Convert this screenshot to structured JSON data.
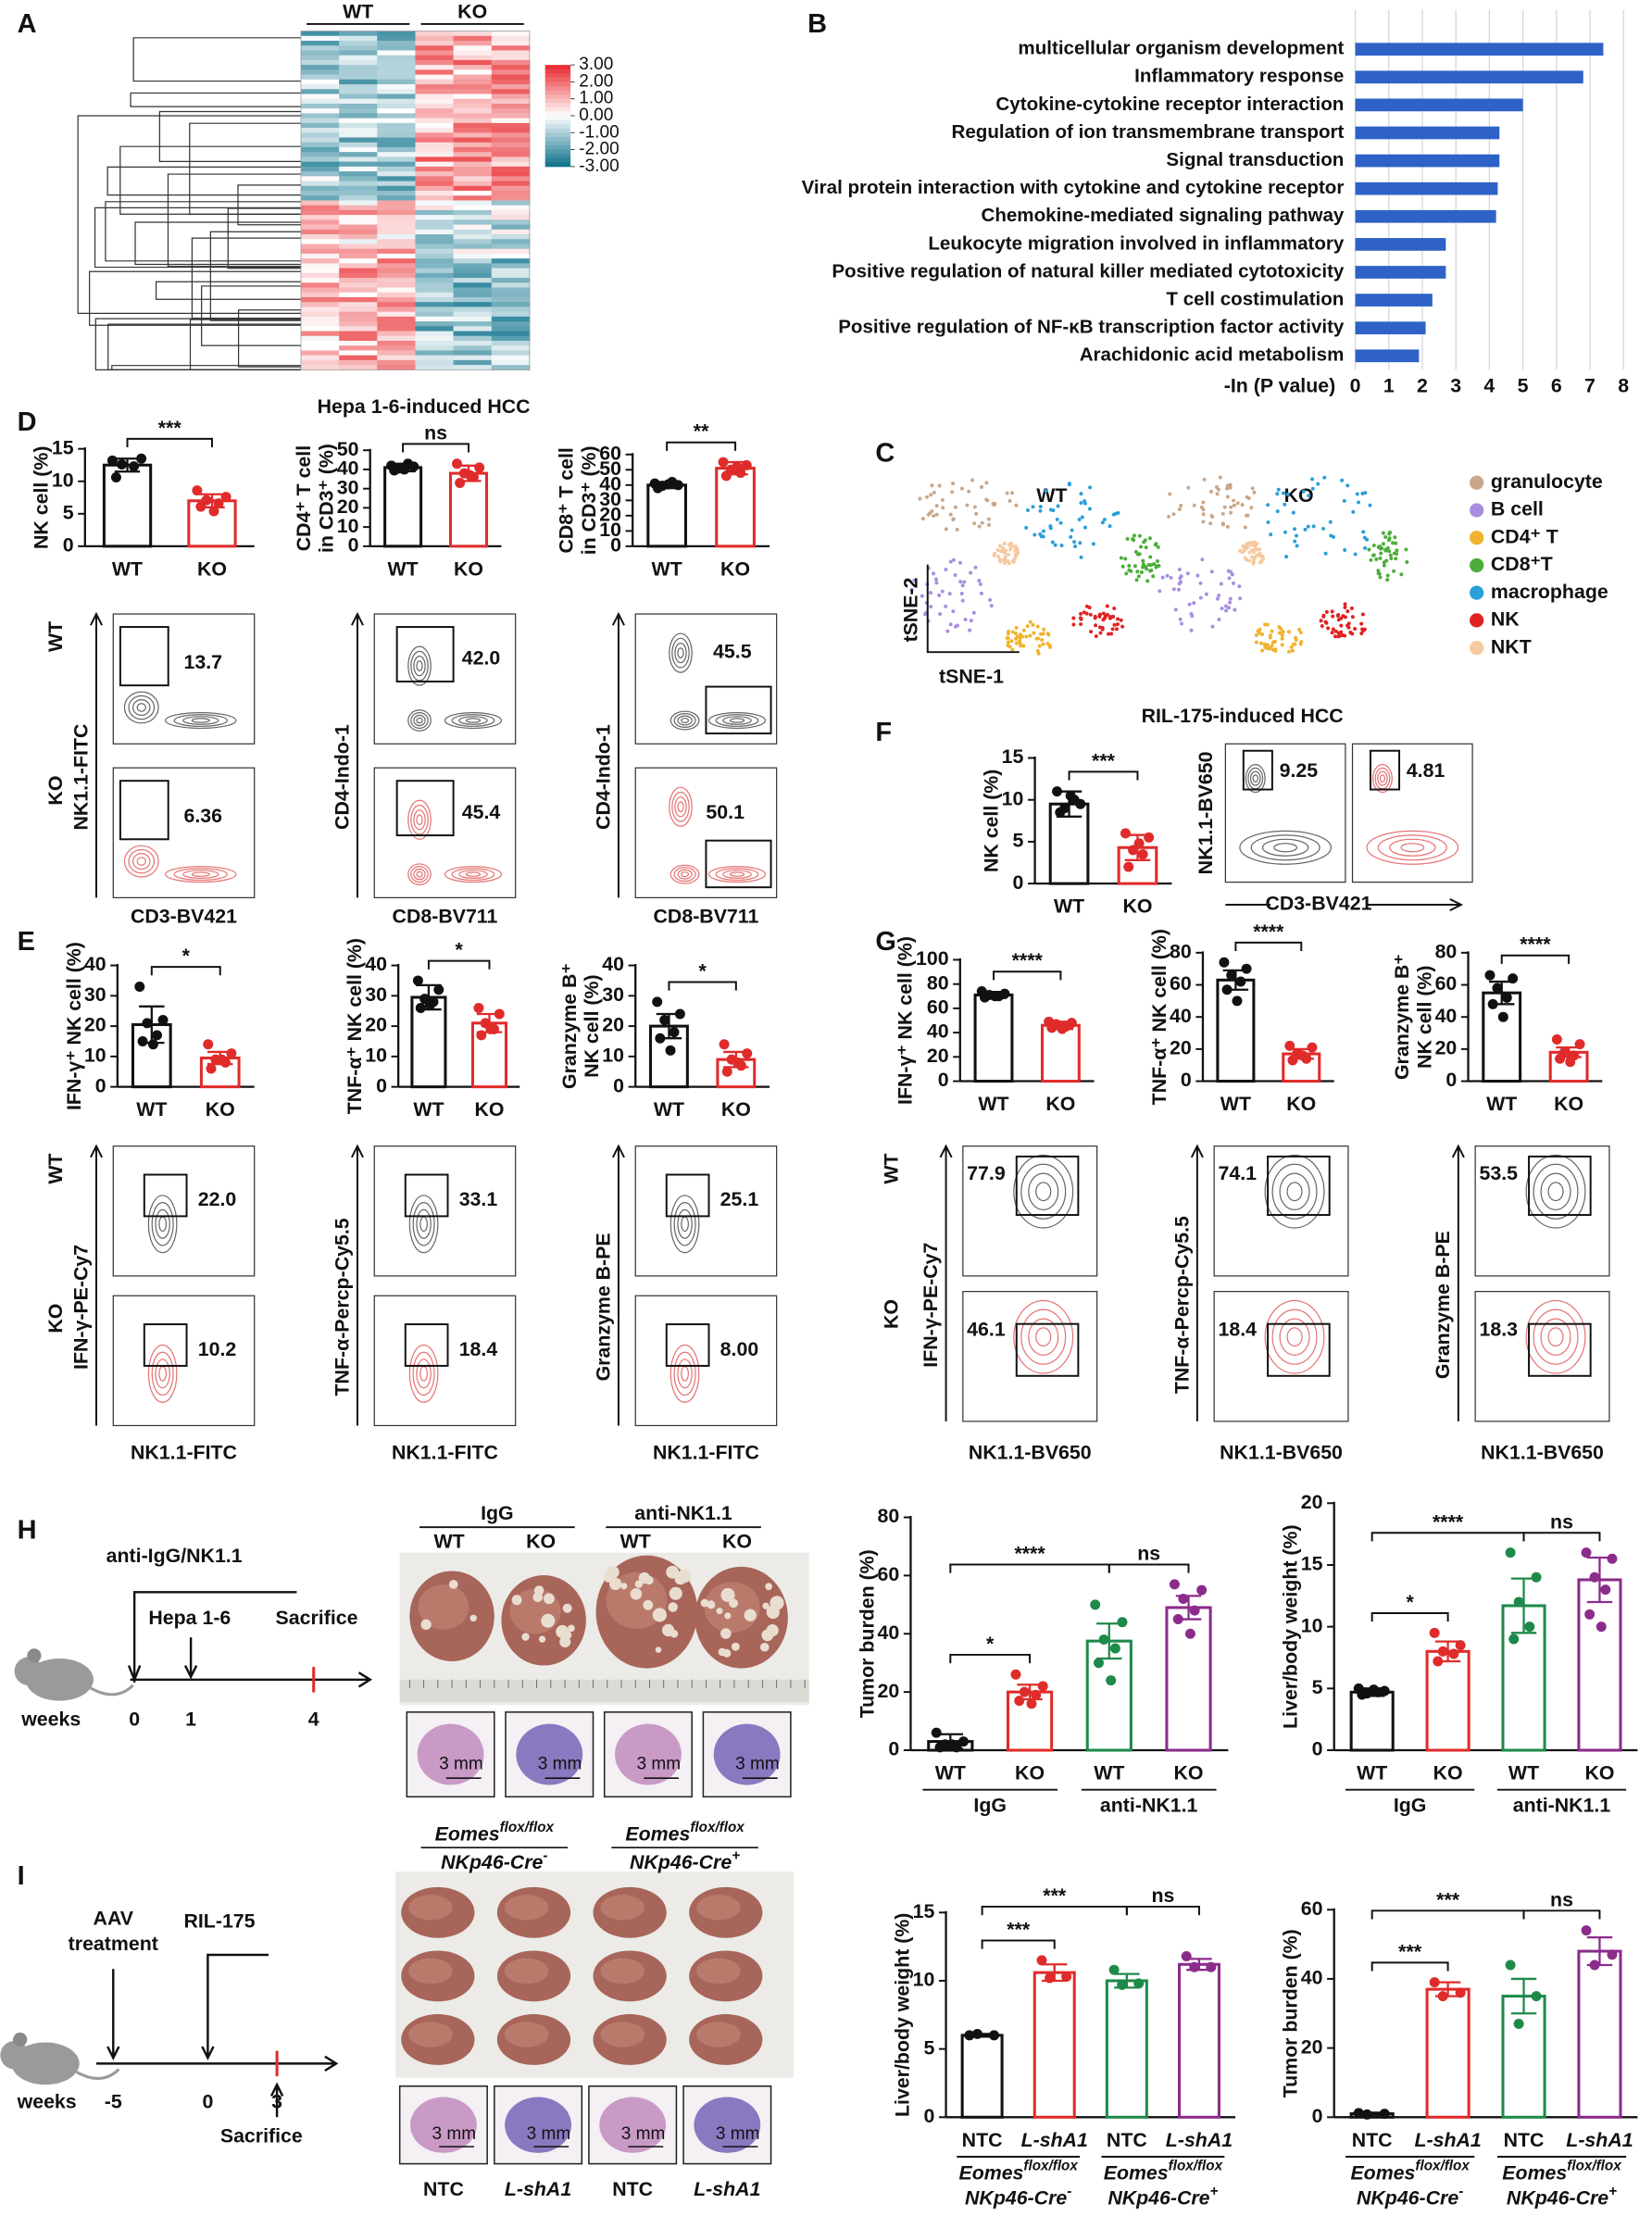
{
  "panel_letters": [
    "A",
    "B",
    "C",
    "D",
    "E",
    "F",
    "G",
    "H",
    "I"
  ],
  "heatmap": {
    "groups": [
      "WT",
      "KO"
    ],
    "colorbar_ticks": [
      {
        "value": 3,
        "label": "3.00"
      },
      {
        "value": 2,
        "label": "2.00"
      },
      {
        "value": 1,
        "label": "1.00"
      },
      {
        "value": 0,
        "label": "0.00"
      },
      {
        "value": -1,
        "label": "-1.00"
      },
      {
        "value": -2,
        "label": "-2.00"
      },
      {
        "value": -3,
        "label": "-3.00"
      }
    ]
  },
  "tsne": {
    "groups": [
      "WT",
      "KO"
    ],
    "x_axis": "tSNE-1",
    "y_axis": "tSNE-2",
    "legend": [
      {
        "name": "granulocyte",
        "color": "#c9a78a"
      },
      {
        "name": "B cell",
        "color": "#a98ee0"
      },
      {
        "name": "CD4⁺ T",
        "color": "#f0b22e"
      },
      {
        "name": "CD8⁺T",
        "color": "#4cae3a"
      },
      {
        "name": "macrophage",
        "color": "#2a9fd8"
      },
      {
        "name": "NK",
        "color": "#e02222"
      },
      {
        "name": "NKT",
        "color": "#f6c9a0"
      }
    ]
  },
  "titles": {
    "D": "Hepa 1-6-induced HCC",
    "F": "RIL-175-induced HCC"
  },
  "flow": {
    "D": {
      "rows": [
        "WT",
        "KO"
      ],
      "y_labels": [
        "NK1.1-FITC",
        "CD4-Indo-1",
        "CD4-Indo-1"
      ],
      "x_labels": [
        "CD3-BV421",
        "CD8-BV711",
        "CD8-BV711"
      ],
      "gates": [
        [
          "13.7",
          "6.36"
        ],
        [
          "42.0",
          "45.4"
        ],
        [
          "45.5",
          "50.1"
        ]
      ]
    },
    "E": {
      "rows": [
        "WT",
        "KO"
      ],
      "y_labels": [
        "IFN-γ-PE-Cy7",
        "TNF-α-Percp-Cy5.5",
        "Granzyme B-PE"
      ],
      "x_labels": [
        "NK1.1-FITC",
        "NK1.1-FITC",
        "NK1.1-FITC"
      ],
      "gates": [
        [
          "22.0",
          "10.2"
        ],
        [
          "33.1",
          "18.4"
        ],
        [
          "25.1",
          "8.00"
        ]
      ]
    },
    "F": {
      "y_labels": [
        "NK1.1-BV650"
      ],
      "x_labels": [
        "CD3-BV421"
      ],
      "gates": [
        [
          "9.25",
          "4.81"
        ]
      ]
    },
    "G": {
      "rows": [
        "WT",
        "KO"
      ],
      "y_labels": [
        "IFN-γ-PE-Cy7",
        "TNF-α-Percp-Cy5.5",
        "Granzyme B-PE"
      ],
      "x_labels": [
        "NK1.1-BV650",
        "NK1.1-BV650",
        "NK1.1-BV650"
      ],
      "gates": [
        [
          "77.9",
          "46.1"
        ],
        [
          "74.1",
          "18.4"
        ],
        [
          "53.5",
          "18.3"
        ]
      ]
    }
  },
  "schematic_H": {
    "treatment": "anti-IgG/NK1.1",
    "injection": "Hepa 1-6",
    "end": "Sacrifice",
    "unit": "weeks",
    "timepoints": [
      "0",
      "1",
      "4"
    ]
  },
  "schematic_I": {
    "treatment": [
      "AAV",
      "treatment"
    ],
    "injection": "RIL-175",
    "end": "Sacrifice",
    "unit": "weeks",
    "timepoints": [
      "-5",
      "0",
      "3"
    ]
  },
  "photos_H": {
    "groups": [
      "IgG",
      "anti-NK1.1"
    ],
    "genotypes": [
      "WT",
      "KO",
      "WT",
      "KO"
    ],
    "scale": [
      "3 mm",
      "3 mm",
      "3 mm",
      "3 mm"
    ]
  },
  "photos_I": {
    "groups": [
      {
        "line1": "Eomes",
        "sup1": "flox/flox",
        "line2": "NKp46-Cre",
        "sup2": "-"
      },
      {
        "line1": "Eomes",
        "sup1": "flox/flox",
        "line2": "NKp46-Cre",
        "sup2": "+"
      }
    ],
    "samples": [
      "NTC",
      "L-shA1",
      "NTC",
      "L-shA1"
    ],
    "scale": [
      "3 mm",
      "3 mm",
      "3 mm",
      "3 mm"
    ]
  },
  "chart_data": [
    {
      "type": "hbar",
      "categories": [
        "multicellular organism development",
        "Inflammatory response",
        "Cytokine-cytokine receptor interaction",
        "Regulation of ion transmembrane transport",
        "Signal transduction",
        "Viral protein interaction with cytokine and cytokine receptor",
        "Chemokine-mediated signaling pathway",
        "Leukocyte migration involved in inflammatory",
        "Positive regulation of natural killer mediated cytotoxicity",
        "T cell costimulation",
        "Positive regulation of NF-κB transcription factor activity",
        "Arachidonic acid metabolism"
      ],
      "values": [
        7.4,
        6.8,
        5.0,
        4.3,
        4.3,
        4.25,
        4.2,
        2.7,
        2.7,
        2.3,
        2.1,
        1.9
      ],
      "color": "#2e62c6",
      "xlabel": "-In (P value)",
      "xlim": [
        0,
        8
      ],
      "xticks": [
        0,
        1,
        2,
        3,
        4,
        5,
        6,
        7,
        8
      ],
      "grid": true
    },
    {
      "type": "dotbar",
      "ylabel": [
        "NK cell (%)"
      ],
      "categories": [
        "WT",
        "KO"
      ],
      "values": [
        12.5,
        7
      ],
      "errors": [
        1,
        1
      ],
      "points": [
        [
          13.2,
          13.5,
          12.6,
          12.3,
          10.6
        ],
        [
          8.6,
          7.6,
          7.1,
          6.6,
          6.1,
          5.4
        ]
      ],
      "colors": [
        "#111111",
        "#e02b2b"
      ],
      "ylim": [
        0,
        15
      ],
      "yticks": [
        0,
        5,
        10,
        15
      ],
      "significance": [
        "***"
      ]
    },
    {
      "type": "dotbar",
      "ylabel": [
        "CD4⁺ T cell",
        "in CD3⁺ (%)"
      ],
      "categories": [
        "WT",
        "KO"
      ],
      "values": [
        41,
        38
      ],
      "errors": [
        2,
        4
      ],
      "points": [
        [
          42,
          41.5,
          40.5,
          43,
          39.5,
          40
        ],
        [
          43,
          41,
          38,
          36,
          33,
          37
        ]
      ],
      "colors": [
        "#111111",
        "#e02b2b"
      ],
      "ylim": [
        0,
        50
      ],
      "yticks": [
        0,
        10,
        20,
        30,
        40,
        50
      ],
      "significance": [
        "ns"
      ]
    },
    {
      "type": "dotbar",
      "ylabel": [
        "CD8⁺ T cell",
        "in CD3⁺ (%)"
      ],
      "categories": [
        "WT",
        "KO"
      ],
      "values": [
        40,
        51
      ],
      "errors": [
        2,
        4
      ],
      "points": [
        [
          41,
          40,
          39.5,
          42,
          38,
          40.5
        ],
        [
          55,
          53,
          50,
          48,
          46,
          52
        ]
      ],
      "colors": [
        "#111111",
        "#e02b2b"
      ],
      "ylim": [
        0,
        60
      ],
      "yticks": [
        0,
        10,
        20,
        30,
        40,
        50,
        60
      ],
      "significance": [
        "**"
      ]
    },
    {
      "type": "dotbar",
      "ylabel": [
        "NK cell (%)"
      ],
      "categories": [
        "WT",
        "KO"
      ],
      "values": [
        9.5,
        4.3
      ],
      "errors": [
        1.5,
        1.5
      ],
      "points": [
        [
          11,
          9.5,
          9,
          10,
          8.5,
          10.5
        ],
        [
          6,
          5.5,
          4,
          3.5,
          2,
          4.8
        ]
      ],
      "colors": [
        "#111111",
        "#e02b2b"
      ],
      "ylim": [
        0,
        15
      ],
      "yticks": [
        0,
        5,
        10,
        15
      ],
      "significance": [
        "***"
      ]
    },
    {
      "type": "dotbar",
      "ylabel": [
        "IFN-γ⁺ NK cell (%)"
      ],
      "categories": [
        "WT",
        "KO"
      ],
      "values": [
        20.5,
        9.5
      ],
      "errors": [
        6,
        2
      ],
      "points": [
        [
          33,
          22,
          21,
          17,
          15,
          14
        ],
        [
          14,
          11,
          9,
          8,
          6,
          9
        ]
      ],
      "colors": [
        "#111111",
        "#e02b2b"
      ],
      "ylim": [
        0,
        40
      ],
      "yticks": [
        0,
        10,
        20,
        30,
        40
      ],
      "significance": [
        "*"
      ]
    },
    {
      "type": "dotbar",
      "ylabel": [
        "TNF-α⁺ NK cell (%)"
      ],
      "categories": [
        "WT",
        "KO"
      ],
      "values": [
        29.5,
        21
      ],
      "errors": [
        4,
        3
      ],
      "points": [
        [
          35,
          32,
          29,
          28,
          26,
          27
        ],
        [
          26,
          24,
          21,
          19,
          17,
          19
        ]
      ],
      "colors": [
        "#111111",
        "#e02b2b"
      ],
      "ylim": [
        0,
        40
      ],
      "yticks": [
        0,
        10,
        20,
        30,
        40
      ],
      "significance": [
        "*"
      ]
    },
    {
      "type": "dotbar",
      "ylabel": [
        "Granzyme B⁺",
        "NK cell (%)"
      ],
      "categories": [
        "WT",
        "KO"
      ],
      "values": [
        20,
        9
      ],
      "errors": [
        4,
        2.5
      ],
      "points": [
        [
          28,
          24,
          22,
          18,
          16,
          12
        ],
        [
          14,
          11,
          9,
          7,
          5,
          8
        ]
      ],
      "colors": [
        "#111111",
        "#e02b2b"
      ],
      "ylim": [
        0,
        40
      ],
      "yticks": [
        0,
        10,
        20,
        30,
        40
      ],
      "significance": [
        "*"
      ]
    },
    {
      "type": "dotbar",
      "ylabel": [
        "IFN-γ⁺ NK cell (%)"
      ],
      "categories": [
        "WT",
        "KO"
      ],
      "values": [
        71,
        46
      ],
      "errors": [
        2.5,
        3
      ],
      "points": [
        [
          74,
          72,
          71,
          70,
          69,
          70
        ],
        [
          49,
          48,
          47,
          45,
          44,
          43
        ]
      ],
      "colors": [
        "#111111",
        "#e02b2b"
      ],
      "ylim": [
        0,
        100
      ],
      "yticks": [
        0,
        20,
        40,
        60,
        80,
        100
      ],
      "significance": [
        "****"
      ]
    },
    {
      "type": "dotbar",
      "ylabel": [
        "TNF-α⁺ NK cell (%)"
      ],
      "categories": [
        "WT",
        "KO"
      ],
      "values": [
        63,
        17
      ],
      "errors": [
        6,
        3
      ],
      "points": [
        [
          74,
          70,
          66,
          62,
          57,
          50
        ],
        [
          22,
          21,
          17,
          14,
          13,
          16
        ]
      ],
      "colors": [
        "#111111",
        "#e02b2b"
      ],
      "ylim": [
        0,
        80
      ],
      "yticks": [
        0,
        20,
        40,
        60,
        80
      ],
      "significance": [
        "****"
      ]
    },
    {
      "type": "dotbar",
      "ylabel": [
        "Granzyme B⁺",
        "NK cell (%)"
      ],
      "categories": [
        "WT",
        "KO"
      ],
      "values": [
        55,
        18
      ],
      "errors": [
        7,
        3
      ],
      "points": [
        [
          66,
          64,
          58,
          52,
          48,
          40
        ],
        [
          26,
          23,
          18,
          16,
          14,
          12
        ]
      ],
      "colors": [
        "#111111",
        "#e02b2b"
      ],
      "ylim": [
        0,
        80
      ],
      "yticks": [
        0,
        20,
        40,
        60,
        80
      ],
      "significance": [
        "****"
      ]
    },
    {
      "type": "dotbar",
      "ylabel": [
        "Tumor burden (%)"
      ],
      "categories": [
        "WT",
        "KO",
        "WT",
        "KO"
      ],
      "groups": [
        "IgG",
        "anti-NK1.1"
      ],
      "values": [
        3,
        20,
        37.5,
        49
      ],
      "errors": [
        2.5,
        2.5,
        6,
        4
      ],
      "points": [
        [
          6,
          3,
          2,
          1,
          1,
          2
        ],
        [
          26,
          22,
          20,
          19,
          17,
          16
        ],
        [
          50,
          44,
          38,
          35,
          30,
          24
        ],
        [
          57,
          55,
          52,
          48,
          45,
          40
        ]
      ],
      "colors": [
        "#111111",
        "#e02b2b",
        "#1d8a4a",
        "#8b2c8b"
      ],
      "ylim": [
        0,
        80
      ],
      "yticks": [
        0,
        20,
        40,
        60,
        80
      ],
      "significance": [
        "*",
        "****",
        "ns"
      ]
    },
    {
      "type": "dotbar",
      "ylabel": [
        "Liver/body weight (%)"
      ],
      "categories": [
        "WT",
        "KO",
        "WT",
        "KO"
      ],
      "groups": [
        "IgG",
        "anti-NK1.1"
      ],
      "values": [
        4.7,
        8,
        11.7,
        13.8
      ],
      "errors": [
        0.3,
        0.8,
        2.2,
        1.8
      ],
      "points": [
        [
          5,
          4.8,
          4.6,
          4.7,
          4.5,
          4.9
        ],
        [
          9.5,
          8.5,
          8,
          7.8,
          7.2
        ],
        [
          16,
          14,
          12,
          10,
          9
        ],
        [
          16,
          15.5,
          14,
          13,
          11,
          10
        ]
      ],
      "colors": [
        "#111111",
        "#e02b2b",
        "#1d8a4a",
        "#8b2c8b"
      ],
      "ylim": [
        0,
        20
      ],
      "yticks": [
        0,
        5,
        10,
        15,
        20
      ],
      "significance": [
        "*",
        "****",
        "ns"
      ]
    },
    {
      "type": "dotbar",
      "ylabel": [
        "Liver/body weight (%)"
      ],
      "categories": [
        "NTC",
        "L-shA1",
        "NTC",
        "L-shA1"
      ],
      "groups": [
        {
          "line1": "Eomes",
          "sup1": "flox/flox",
          "line2": "NKp46-Cre",
          "sup2": "-"
        },
        {
          "line1": "Eomes",
          "sup1": "flox/flox",
          "line2": "NKp46-Cre",
          "sup2": "+"
        }
      ],
      "values": [
        6,
        10.6,
        10,
        11.2
      ],
      "errors": [
        0.1,
        0.6,
        0.5,
        0.4
      ],
      "points": [
        [
          6,
          6,
          6.1
        ],
        [
          11.5,
          10.3,
          10.2
        ],
        [
          10.8,
          9.8,
          9.7
        ],
        [
          11.8,
          11,
          11
        ]
      ],
      "colors": [
        "#111111",
        "#e02b2b",
        "#1d8a4a",
        "#8b2c8b"
      ],
      "ylim": [
        0,
        15
      ],
      "yticks": [
        0,
        5,
        10,
        15
      ],
      "significance": [
        "***",
        "***",
        "ns"
      ]
    },
    {
      "type": "dotbar",
      "ylabel": [
        "Tumor burden (%)"
      ],
      "categories": [
        "NTC",
        "L-shA1",
        "NTC",
        "L-shA1"
      ],
      "groups": [
        {
          "line1": "Eomes",
          "sup1": "flox/flox",
          "line2": "NKp46-Cre",
          "sup2": "-"
        },
        {
          "line1": "Eomes",
          "sup1": "flox/flox",
          "line2": "NKp46-Cre",
          "sup2": "+"
        }
      ],
      "values": [
        1,
        37,
        35,
        48
      ],
      "errors": [
        0.3,
        2,
        5,
        4
      ],
      "points": [
        [
          1.2,
          1,
          0.8
        ],
        [
          39,
          36,
          35
        ],
        [
          44,
          35,
          27
        ],
        [
          54,
          47,
          44
        ]
      ],
      "colors": [
        "#111111",
        "#e02b2b",
        "#1d8a4a",
        "#8b2c8b"
      ],
      "ylim": [
        0,
        60
      ],
      "yticks": [
        0,
        20,
        40,
        60
      ],
      "significance": [
        "***",
        "***",
        "ns"
      ]
    }
  ]
}
